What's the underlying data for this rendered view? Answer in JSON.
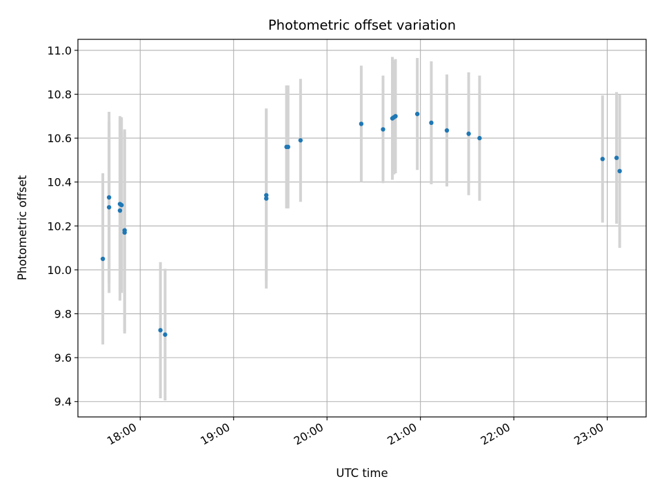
{
  "chart_data": {
    "type": "scatter",
    "title": "Photometric offset variation",
    "xlabel": "UTC time",
    "ylabel": "Photometric offset",
    "x_axis_type": "time",
    "xlim": [
      "17:20",
      "23:25"
    ],
    "ylim": [
      9.33,
      11.05
    ],
    "x_ticks": [
      "18:00",
      "19:00",
      "20:00",
      "21:00",
      "22:00",
      "23:00"
    ],
    "y_ticks": [
      "9.4",
      "9.6",
      "9.8",
      "10.0",
      "10.2",
      "10.4",
      "10.6",
      "10.8",
      "11.0"
    ],
    "grid": true,
    "colors": {
      "points": "#1f77b4",
      "error_bars": "#d3d3d3",
      "grid": "#b0b0b0"
    },
    "points": [
      {
        "time": "17:36",
        "y": 10.05,
        "err": 0.39
      },
      {
        "time": "17:40",
        "y": 10.33,
        "err": 0.39
      },
      {
        "time": "17:40",
        "y": 10.285,
        "err": 0.39
      },
      {
        "time": "17:47",
        "y": 10.3,
        "err": 0.4
      },
      {
        "time": "17:47",
        "y": 10.27,
        "err": 0.41
      },
      {
        "time": "17:48",
        "y": 10.295,
        "err": 0.4
      },
      {
        "time": "17:50",
        "y": 10.18,
        "err": 0.46
      },
      {
        "time": "17:50",
        "y": 10.17,
        "err": 0.46
      },
      {
        "time": "18:13",
        "y": 9.725,
        "err": 0.31
      },
      {
        "time": "18:16",
        "y": 9.705,
        "err": 0.3
      },
      {
        "time": "19:21",
        "y": 10.34,
        "err": 0.39
      },
      {
        "time": "19:21",
        "y": 10.325,
        "err": 0.41
      },
      {
        "time": "19:34",
        "y": 10.56,
        "err": 0.28
      },
      {
        "time": "19:35",
        "y": 10.56,
        "err": 0.28
      },
      {
        "time": "19:43",
        "y": 10.59,
        "err": 0.28
      },
      {
        "time": "20:22",
        "y": 10.665,
        "err": 0.265
      },
      {
        "time": "20:36",
        "y": 10.64,
        "err": 0.245
      },
      {
        "time": "20:42",
        "y": 10.69,
        "err": 0.28
      },
      {
        "time": "20:43",
        "y": 10.695,
        "err": 0.26
      },
      {
        "time": "20:44",
        "y": 10.7,
        "err": 0.26
      },
      {
        "time": "20:58",
        "y": 10.71,
        "err": 0.255
      },
      {
        "time": "21:07",
        "y": 10.67,
        "err": 0.28
      },
      {
        "time": "21:17",
        "y": 10.635,
        "err": 0.255
      },
      {
        "time": "21:31",
        "y": 10.62,
        "err": 0.28
      },
      {
        "time": "21:38",
        "y": 10.6,
        "err": 0.285
      },
      {
        "time": "22:57",
        "y": 10.505,
        "err": 0.29
      },
      {
        "time": "23:06",
        "y": 10.51,
        "err": 0.3
      },
      {
        "time": "23:08",
        "y": 10.45,
        "err": 0.35
      }
    ]
  }
}
